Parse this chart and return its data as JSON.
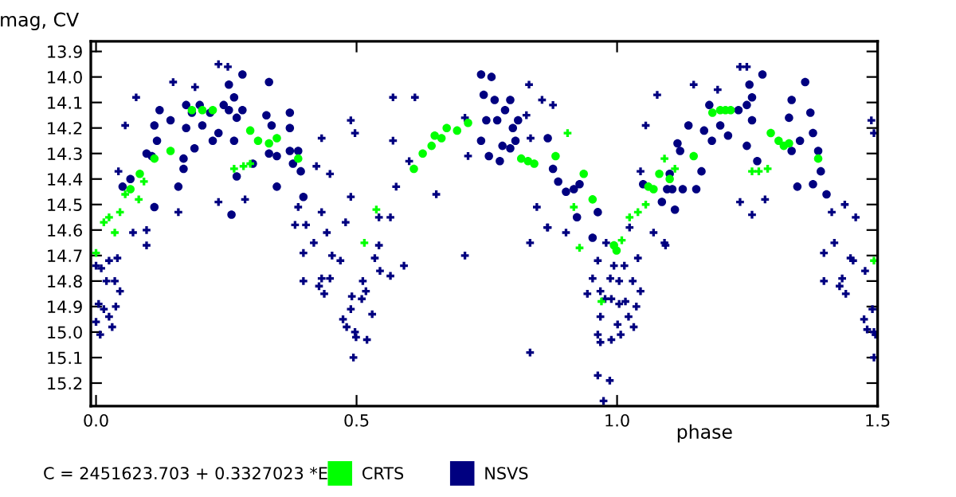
{
  "chart_data": {
    "type": "scatter",
    "xlabel": "phase",
    "ylabel": "mag, CV",
    "annotations": [
      "C = 2451623.703 + 0.3327023 *E"
    ],
    "xlim": [
      -0.01,
      1.5
    ],
    "ylim": [
      15.29,
      13.86
    ],
    "xticks": [
      {
        "value": 0,
        "label": "0.0"
      },
      0.5,
      {
        "value": 1,
        "label": "1.0"
      },
      1.5
    ],
    "yticks": [
      13.9,
      {
        "value": 14,
        "label": "14.0"
      },
      14.1,
      14.2,
      14.3,
      14.4,
      14.5,
      14.6,
      14.7,
      14.8,
      14.9,
      {
        "value": 15,
        "label": "15.0"
      },
      15.1,
      15.2
    ],
    "grid": false,
    "legend": "bottom",
    "series": [
      {
        "name": "NSVS",
        "color": "#000080",
        "marker": "circle",
        "x": [
          0.112,
          0.122,
          0.097,
          0.117,
          0.107,
          0.112,
          0.066,
          0.051,
          0.143,
          0.158,
          0.168,
          0.173,
          0.173,
          0.184,
          0.199,
          0.219,
          0.168,
          0.189,
          0.204,
          0.224,
          0.235,
          0.245,
          0.255,
          0.265,
          0.255,
          0.27,
          0.281,
          0.281,
          0.265,
          0.27,
          0.301,
          0.332,
          0.327,
          0.337,
          0.332,
          0.347,
          0.372,
          0.372,
          0.372,
          0.378,
          0.393,
          0.388,
          0.398,
          0.347,
          0.26,
          0.739,
          0.759,
          0.744,
          0.765,
          0.795,
          0.785,
          0.749,
          0.77,
          0.81,
          0.8,
          0.739,
          0.78,
          0.795,
          0.805,
          0.754,
          0.775,
          0.867,
          0.877,
          0.887,
          0.902,
          0.917,
          0.928,
          0.923,
          0.953,
          0.963,
          1.05,
          1.086,
          1.096,
          1.106,
          1.101,
          1.111,
          1.126,
          1.116,
          1.121,
          1.137,
          1.152,
          1.162,
          1.167,
          1.177,
          1.182,
          1.198,
          1.213,
          1.233,
          1.249,
          1.259,
          1.254,
          1.279,
          1.259,
          1.249,
          1.269,
          1.33,
          1.335,
          1.361,
          1.371,
          1.351,
          1.335,
          1.376,
          1.386,
          1.391,
          1.376,
          1.402,
          1.346
        ],
        "values": [
          14.19,
          14.13,
          14.3,
          14.25,
          14.31,
          14.51,
          14.4,
          14.43,
          14.17,
          14.43,
          14.32,
          14.11,
          14.2,
          14.14,
          14.11,
          14.14,
          14.36,
          14.28,
          14.19,
          14.25,
          14.22,
          14.11,
          14.03,
          14.08,
          14.13,
          14.16,
          13.99,
          14.13,
          14.25,
          14.39,
          14.34,
          14.02,
          14.15,
          14.19,
          14.3,
          14.31,
          14.14,
          14.2,
          14.29,
          14.34,
          14.37,
          14.29,
          14.47,
          14.43,
          14.54,
          13.99,
          14.0,
          14.07,
          14.09,
          14.09,
          14.13,
          14.17,
          14.17,
          14.17,
          14.2,
          14.25,
          14.27,
          14.28,
          14.25,
          14.31,
          14.33,
          14.24,
          14.36,
          14.41,
          14.45,
          14.44,
          14.42,
          14.55,
          14.63,
          14.53,
          14.42,
          14.49,
          14.44,
          14.44,
          14.38,
          14.52,
          14.44,
          14.26,
          14.29,
          14.19,
          14.44,
          14.37,
          14.21,
          14.11,
          14.25,
          14.19,
          14.23,
          14.13,
          14.11,
          14.08,
          14.03,
          13.99,
          14.17,
          14.27,
          14.33,
          14.16,
          14.09,
          14.02,
          14.14,
          14.25,
          14.29,
          14.22,
          14.29,
          14.37,
          14.42,
          14.46,
          14.43
        ]
      },
      {
        "color": "#000080",
        "marker": "cross",
        "x": [
          0.0,
          0.005,
          0.0,
          0.008,
          0.015,
          0.025,
          0.031,
          0.038,
          0.046,
          0.02,
          0.036,
          0.01,
          0.025,
          0.041,
          0.097,
          0.097,
          0.071,
          0.382,
          0.398,
          0.398,
          0.428,
          0.438,
          0.433,
          0.449,
          0.418,
          0.443,
          0.453,
          0.469,
          0.474,
          0.481,
          0.489,
          0.491,
          0.494,
          0.497,
          0.499,
          0.51,
          0.512,
          0.518,
          0.52,
          0.53,
          0.535,
          0.543,
          0.545,
          0.565,
          0.591,
          0.708,
          0.833,
          0.866,
          0.943,
          0.963,
          0.968,
          0.989,
          0.963,
          0.986,
          0.974,
          0.968,
          1.001,
          1.007,
          1.022,
          1.032,
          1.037,
          1.016,
          1.004,
          0.989,
          0.977,
          0.968,
          0.987,
          1.004,
          1.03,
          1.045,
          0.953,
          0.994,
          1.014,
          1.04,
          0.963,
          0.979,
          1.024,
          1.07,
          1.093,
          0.833,
          1.397,
          1.397,
          1.417,
          1.432,
          1.439,
          1.427,
          1.448,
          1.453,
          1.476,
          1.474,
          1.48,
          1.49,
          1.496,
          1.493,
          1.493,
          0.235,
          0.253,
          0.148,
          0.19,
          0.077,
          0.056,
          0.043,
          0.235,
          0.286,
          0.158,
          0.388,
          0.423,
          0.449,
          0.433,
          0.489,
          0.497,
          0.489,
          0.479,
          0.57,
          0.612,
          0.57,
          0.576,
          0.601,
          0.708,
          0.714,
          0.653,
          0.543,
          0.565,
          0.403,
          0.433,
          0.831,
          0.856,
          0.877,
          0.826,
          0.834,
          1.147,
          1.193,
          1.236,
          1.249,
          1.077,
          1.055,
          1.045,
          1.236,
          1.284,
          1.259,
          1.488,
          1.493,
          1.437,
          1.458,
          1.412,
          0.867,
          0.846,
          0.902,
          1.091
        ],
        "values": [
          14.74,
          14.89,
          14.96,
          15.01,
          14.91,
          14.94,
          14.98,
          14.9,
          14.84,
          14.8,
          14.8,
          14.75,
          14.72,
          14.71,
          14.66,
          14.6,
          14.61,
          14.58,
          14.69,
          14.8,
          14.82,
          14.85,
          14.79,
          14.79,
          14.65,
          14.61,
          14.7,
          14.72,
          14.95,
          14.98,
          14.91,
          14.86,
          15.1,
          15.0,
          15.02,
          14.87,
          14.8,
          14.84,
          15.03,
          14.93,
          14.71,
          14.66,
          14.76,
          14.78,
          14.74,
          14.7,
          15.08,
          14.59,
          14.85,
          15.01,
          15.04,
          15.03,
          15.17,
          15.19,
          15.27,
          14.94,
          14.97,
          15.01,
          14.94,
          14.98,
          14.9,
          14.88,
          14.89,
          14.87,
          14.87,
          14.84,
          14.79,
          14.8,
          14.8,
          14.84,
          14.79,
          14.74,
          14.74,
          14.71,
          14.72,
          14.65,
          14.59,
          14.61,
          14.66,
          14.65,
          14.69,
          14.8,
          14.65,
          14.79,
          14.85,
          14.82,
          14.71,
          14.72,
          14.76,
          14.95,
          14.99,
          14.91,
          15.01,
          15.1,
          15.0,
          13.95,
          13.96,
          14.02,
          14.04,
          14.08,
          14.19,
          14.37,
          14.49,
          14.48,
          14.53,
          14.51,
          14.35,
          14.38,
          14.24,
          14.17,
          14.22,
          14.47,
          14.57,
          14.08,
          14.08,
          14.25,
          14.43,
          14.33,
          14.16,
          14.31,
          14.46,
          14.55,
          14.55,
          14.58,
          14.53,
          14.03,
          14.09,
          14.11,
          14.15,
          14.24,
          14.03,
          14.05,
          13.96,
          13.96,
          14.07,
          14.19,
          14.37,
          14.49,
          14.48,
          14.54,
          14.17,
          14.22,
          14.5,
          14.55,
          14.53,
          14.59,
          14.51,
          14.61,
          14.65
        ]
      },
      {
        "name": "CRTS",
        "color": "#00ff00",
        "marker": "circle",
        "x": [
          0.066,
          0.084,
          0.112,
          0.143,
          0.184,
          0.204,
          0.224,
          0.296,
          0.311,
          0.332,
          0.347,
          0.388,
          0.61,
          0.627,
          0.644,
          0.65,
          0.663,
          0.673,
          0.693,
          0.714,
          0.816,
          0.829,
          0.841,
          0.882,
          0.936,
          0.953,
          0.994,
          0.999,
          1.06,
          1.07,
          1.081,
          1.101,
          1.147,
          1.183,
          1.198,
          1.208,
          1.218,
          1.295,
          1.31,
          1.32,
          1.33,
          1.386
        ],
        "values": [
          14.44,
          14.38,
          14.32,
          14.29,
          14.13,
          14.13,
          14.13,
          14.21,
          14.25,
          14.26,
          14.24,
          14.32,
          14.36,
          14.3,
          14.27,
          14.23,
          14.24,
          14.2,
          14.21,
          14.18,
          14.32,
          14.33,
          14.34,
          14.31,
          14.38,
          14.48,
          14.66,
          14.68,
          14.43,
          14.44,
          14.38,
          14.4,
          14.31,
          14.14,
          14.13,
          14.13,
          14.13,
          14.22,
          14.25,
          14.27,
          14.26,
          14.32
        ]
      },
      {
        "color": "#00ff00",
        "marker": "cross",
        "x": [
          0.0,
          0.015,
          0.025,
          0.036,
          0.046,
          0.056,
          0.082,
          0.092,
          0.265,
          0.283,
          0.296,
          0.538,
          0.515,
          0.905,
          0.917,
          0.928,
          1.009,
          1.024,
          1.04,
          1.055,
          1.091,
          1.111,
          1.259,
          1.272,
          1.289,
          0.97,
          1.493
        ],
        "values": [
          14.69,
          14.57,
          14.55,
          14.61,
          14.53,
          14.46,
          14.48,
          14.41,
          14.36,
          14.35,
          14.34,
          14.52,
          14.65,
          14.22,
          14.51,
          14.67,
          14.64,
          14.55,
          14.53,
          14.5,
          14.32,
          14.36,
          14.37,
          14.37,
          14.36,
          14.88,
          14.72
        ]
      }
    ]
  }
}
